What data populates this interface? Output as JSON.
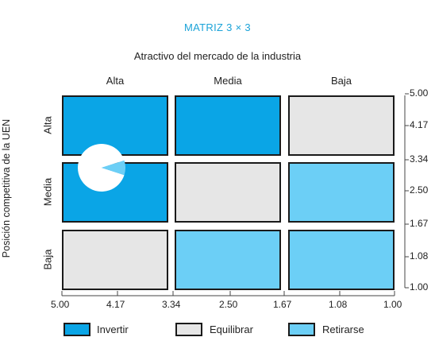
{
  "title": "MATRIZ 3 × 3",
  "subtitle": "Atractivo del mercado de la industria",
  "columns": [
    "Alta",
    "Media",
    "Baja"
  ],
  "rows": [
    "Alta",
    "Media",
    "Baja"
  ],
  "y_axis_title": "Posición competitiva de la UEN",
  "right_ticks": [
    "5.00",
    "4.17",
    "3.34",
    "2.50",
    "1.67",
    "1.08",
    "1.00"
  ],
  "bottom_ticks": [
    "5.00",
    "4.17",
    "3.34",
    "2.50",
    "1.67",
    "1.08",
    "1.00"
  ],
  "colors": {
    "invertir": "#0aa5e6",
    "equilibrar": "#e6e6e6",
    "retirarse": "#6ccff6"
  },
  "grid": [
    [
      "invertir",
      "invertir",
      "equilibrar"
    ],
    [
      "invertir",
      "equilibrar",
      "retirarse"
    ],
    [
      "equilibrar",
      "retirarse",
      "retirarse"
    ]
  ],
  "legend": [
    {
      "key": "invertir",
      "label": "Invertir"
    },
    {
      "key": "equilibrar",
      "label": "Equilibrar"
    },
    {
      "key": "retirarse",
      "label": "Retirarse"
    }
  ],
  "pie_marker": {
    "row": 0,
    "col": 0,
    "slice_fraction": 0.1
  }
}
